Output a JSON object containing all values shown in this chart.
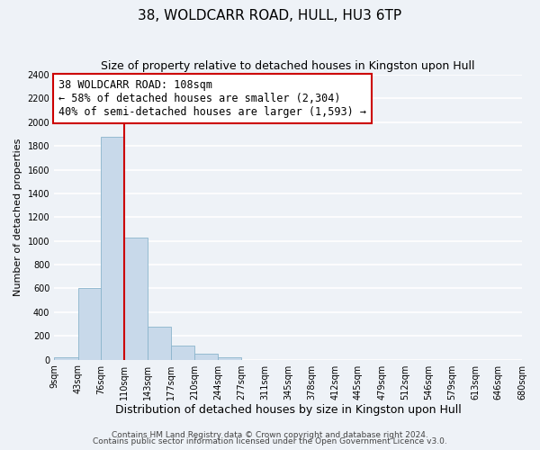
{
  "title": "38, WOLDCARR ROAD, HULL, HU3 6TP",
  "subtitle": "Size of property relative to detached houses in Kingston upon Hull",
  "xlabel": "Distribution of detached houses by size in Kingston upon Hull",
  "ylabel": "Number of detached properties",
  "bar_edges": [
    9,
    43,
    76,
    110,
    143,
    177,
    210,
    244,
    277,
    311,
    345,
    378,
    412,
    445,
    479,
    512,
    546,
    579,
    613,
    646,
    680
  ],
  "bar_heights": [
    20,
    600,
    1880,
    1030,
    280,
    115,
    50,
    20,
    0,
    0,
    0,
    0,
    0,
    0,
    0,
    0,
    0,
    0,
    0,
    0
  ],
  "bar_color": "#c8d9ea",
  "bar_edgecolor": "#8ab4cc",
  "property_line_x": 110,
  "property_line_color": "#cc0000",
  "annotation_line1": "38 WOLDCARR ROAD: 108sqm",
  "annotation_line2": "← 58% of detached houses are smaller (2,304)",
  "annotation_line3": "40% of semi-detached houses are larger (1,593) →",
  "annotation_box_edgecolor": "#cc0000",
  "annotation_box_facecolor": "#ffffff",
  "ylim": [
    0,
    2400
  ],
  "yticks": [
    0,
    200,
    400,
    600,
    800,
    1000,
    1200,
    1400,
    1600,
    1800,
    2000,
    2200,
    2400
  ],
  "tick_labels": [
    "9sqm",
    "43sqm",
    "76sqm",
    "110sqm",
    "143sqm",
    "177sqm",
    "210sqm",
    "244sqm",
    "277sqm",
    "311sqm",
    "345sqm",
    "378sqm",
    "412sqm",
    "445sqm",
    "479sqm",
    "512sqm",
    "546sqm",
    "579sqm",
    "613sqm",
    "646sqm",
    "680sqm"
  ],
  "footer_line1": "Contains HM Land Registry data © Crown copyright and database right 2024.",
  "footer_line2": "Contains public sector information licensed under the Open Government Licence v3.0.",
  "background_color": "#eef2f7",
  "plot_background_color": "#eef2f7",
  "grid_color": "#ffffff",
  "title_fontsize": 11,
  "subtitle_fontsize": 9,
  "ylabel_fontsize": 8,
  "xlabel_fontsize": 9,
  "tick_fontsize": 7,
  "footer_fontsize": 6.5,
  "annotation_fontsize": 8.5
}
